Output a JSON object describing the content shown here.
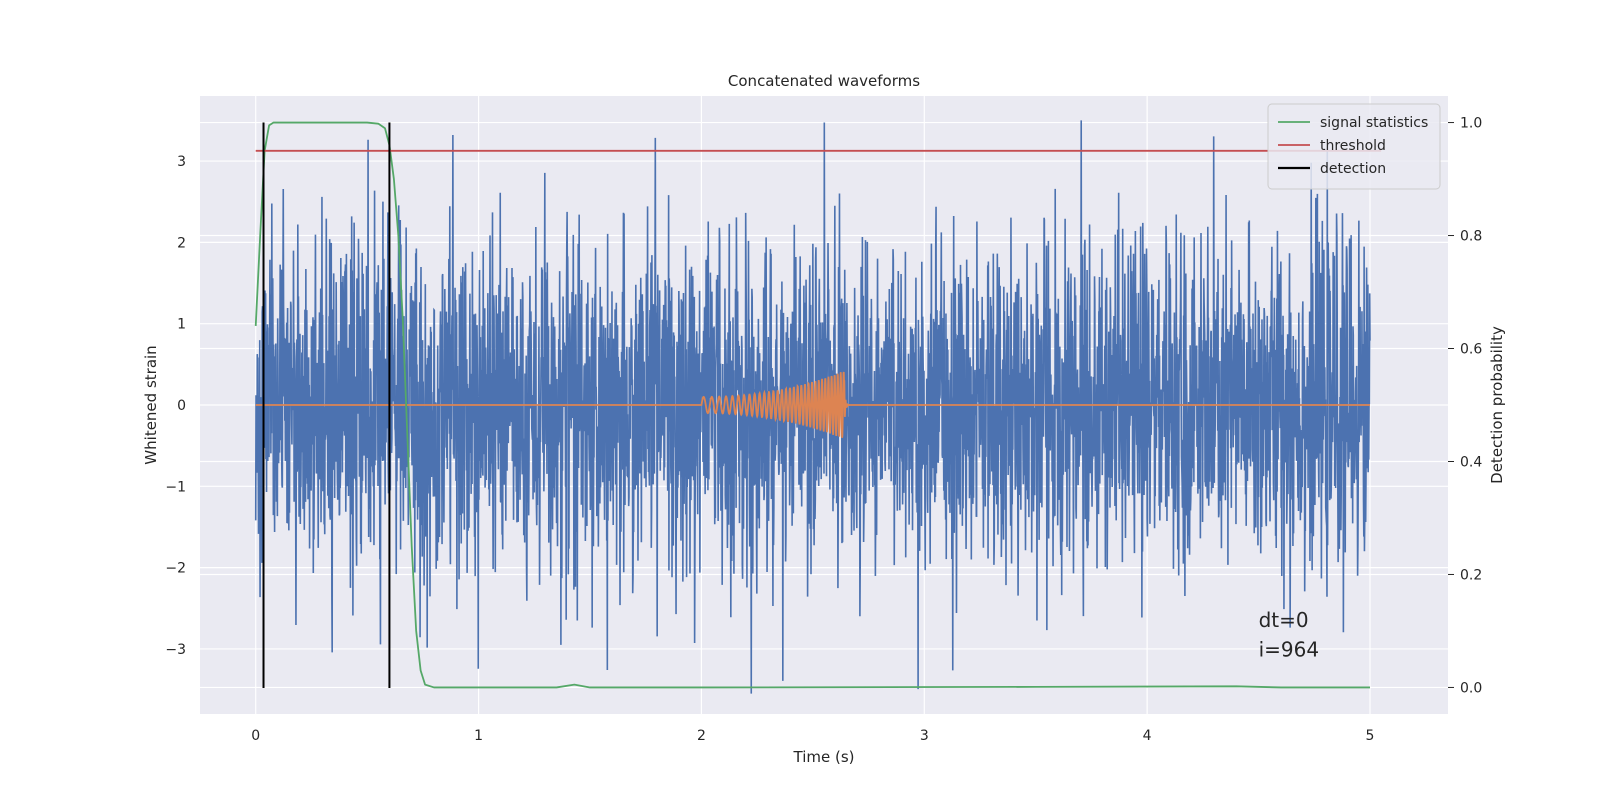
{
  "chart_data": {
    "type": "line",
    "title": "Concatenated waveforms",
    "xlabel": "Time (s)",
    "ylabel": "Whitened strain",
    "y2label": "Detection probability",
    "xlim": [
      -0.25,
      5.35
    ],
    "ylim": [
      -3.8,
      3.8
    ],
    "y2lim": [
      -0.047,
      1.047
    ],
    "xticks": [
      0,
      1,
      2,
      3,
      4,
      5
    ],
    "yticks": [
      -3,
      -2,
      -1,
      0,
      1,
      2,
      3
    ],
    "yticklabels": [
      "−3",
      "−2",
      "−1",
      "0",
      "1",
      "2",
      "3"
    ],
    "y2ticks": [
      0.0,
      0.2,
      0.4,
      0.6,
      0.8,
      1.0
    ],
    "y2ticklabels": [
      "0.0",
      "0.2",
      "0.4",
      "0.6",
      "0.8",
      "1.0"
    ],
    "grid": true,
    "legend_position": "top-right",
    "series": [
      {
        "name": "",
        "kind": "noise",
        "axis": "left",
        "color": "#4c72b0",
        "x_range": [
          0,
          5
        ],
        "envelope": 1.0,
        "spike_max": 3.5,
        "spike_min": -3.55
      },
      {
        "name": "",
        "kind": "chirp",
        "axis": "left",
        "color": "#dd8452",
        "x_start": 2.0,
        "x_merge": 2.64,
        "x_end": 5.0,
        "amp_start": 0.1,
        "amp_peak": 0.42
      },
      {
        "name": "signal statistics",
        "axis": "right",
        "color": "#55a868",
        "x": [
          0.0,
          0.02,
          0.04,
          0.06,
          0.08,
          0.12,
          0.5,
          0.55,
          0.58,
          0.6,
          0.62,
          0.64,
          0.66,
          0.68,
          0.7,
          0.72,
          0.74,
          0.76,
          0.8,
          1.0,
          1.35,
          1.43,
          1.5,
          2.0,
          3.5,
          4.4,
          4.6,
          5.0
        ],
        "y": [
          0.64,
          0.8,
          0.95,
          0.995,
          1.0,
          1.0,
          1.0,
          0.998,
          0.99,
          0.96,
          0.9,
          0.8,
          0.65,
          0.45,
          0.25,
          0.1,
          0.03,
          0.005,
          0.0,
          0.0,
          0.0,
          0.005,
          0.0,
          0.0,
          0.001,
          0.002,
          0.0,
          0.0
        ]
      },
      {
        "name": "threshold",
        "axis": "right",
        "color": "#c44e52",
        "x": [
          0,
          5.05
        ],
        "y": [
          0.95,
          0.95
        ]
      },
      {
        "name": "detection",
        "axis": "right",
        "color": "#000000",
        "kind": "vlines",
        "x": [
          0.035,
          0.6
        ],
        "y": [
          -0.001,
          1.0
        ]
      }
    ],
    "annotations": [
      {
        "text": "dt=0",
        "x": 4.5,
        "y": -2.73
      },
      {
        "text": "i=964",
        "x": 4.5,
        "y": -3.09
      }
    ]
  }
}
